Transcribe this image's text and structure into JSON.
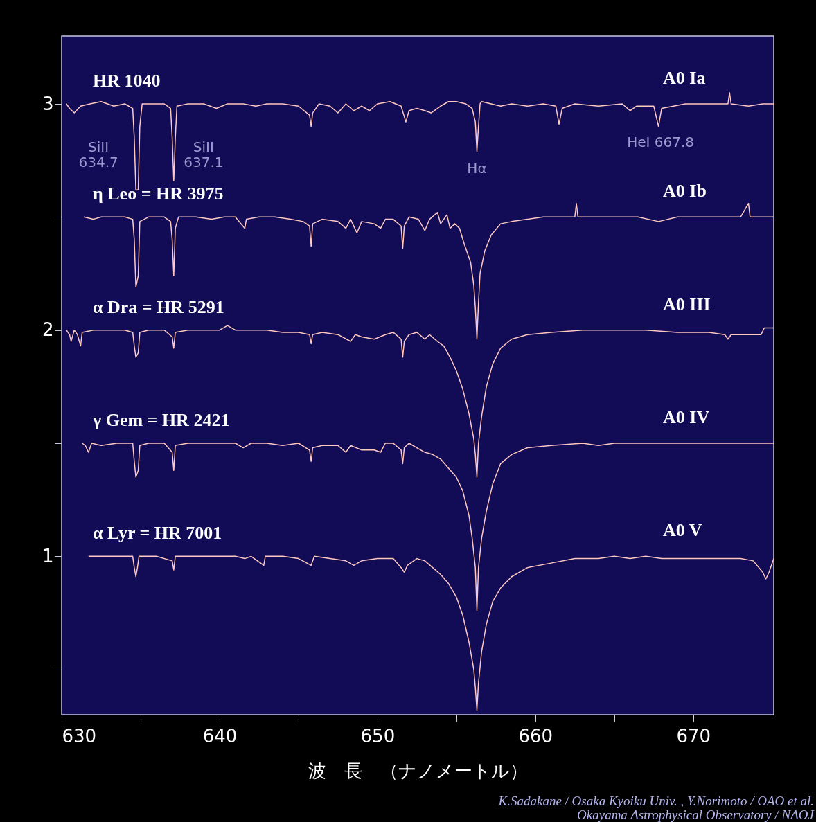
{
  "chart_data": {
    "type": "line",
    "xlabel": "波　長　（ナノメートル）",
    "xlim": [
      630,
      675.1
    ],
    "ylim": [
      0.3,
      3.3
    ],
    "xticks": [
      630,
      {
        "value": 635,
        "label": null
      },
      640,
      {
        "value": 645,
        "label": null
      },
      650,
      {
        "value": 655,
        "label": null
      },
      660,
      {
        "value": 665,
        "label": null
      },
      670
    ],
    "yticks": [
      {
        "value": 0.5,
        "label": null
      },
      {
        "value": 1,
        "label": "1"
      },
      {
        "value": 1.5,
        "label": null
      },
      {
        "value": 2,
        "label": "2"
      },
      {
        "value": 2.5,
        "label": null
      },
      {
        "value": 3,
        "label": "3"
      }
    ],
    "grid": false,
    "line_style": "solid",
    "marker": "none",
    "legend": false,
    "series": [
      {
        "name": "HR 1040",
        "color": "#ffc8c0",
        "x": [
          630.3,
          630.5,
          630.8,
          631.2,
          631.8,
          632.5,
          633.3,
          634.0,
          634.5,
          634.6,
          634.7,
          634.85,
          634.95,
          635.1,
          635.8,
          636.5,
          636.9,
          637.0,
          637.1,
          637.2,
          637.3,
          638.0,
          639.0,
          639.8,
          640.5,
          641.5,
          642.3,
          643.0,
          644.0,
          645.0,
          645.7,
          645.8,
          645.9,
          646.3,
          647.0,
          647.5,
          648.0,
          648.5,
          649.0,
          649.5,
          650.0,
          650.8,
          651.5,
          651.8,
          652.0,
          652.5,
          653.0,
          653.4,
          654.0,
          654.5,
          655.0,
          655.6,
          656.0,
          656.2,
          656.3,
          656.4,
          656.5,
          656.6,
          657.2,
          657.8,
          658.5,
          659.5,
          660.5,
          661.3,
          661.5,
          661.7,
          662.5,
          664.0,
          665.5,
          666.0,
          666.4,
          667.5,
          667.8,
          668.0,
          669.5,
          671.0,
          672.2,
          672.3,
          672.4,
          673.5,
          674.4,
          675.1
        ],
        "values": [
          3.0,
          2.98,
          2.96,
          2.99,
          3.0,
          3.01,
          2.99,
          3.0,
          2.98,
          2.85,
          2.62,
          2.62,
          2.9,
          3.0,
          3.0,
          3.0,
          2.98,
          2.85,
          2.66,
          2.85,
          2.99,
          3.0,
          3.0,
          2.98,
          3.0,
          3.0,
          2.99,
          3.0,
          3.0,
          2.99,
          2.95,
          2.9,
          2.96,
          3.0,
          2.99,
          2.96,
          3.0,
          2.97,
          2.99,
          2.97,
          3.0,
          3.01,
          2.99,
          2.92,
          2.97,
          2.98,
          2.97,
          2.96,
          2.99,
          3.01,
          3.01,
          3.0,
          2.98,
          2.92,
          2.79,
          2.9,
          3.0,
          3.01,
          3.0,
          2.99,
          3.0,
          2.99,
          3.0,
          2.99,
          2.91,
          2.98,
          3.0,
          2.99,
          3.0,
          2.97,
          2.99,
          2.99,
          2.9,
          2.98,
          3.0,
          3.0,
          3.0,
          3.05,
          3.0,
          2.99,
          3.0,
          3.0
        ]
      },
      {
        "name": "η Leo = HR 3975",
        "color": "#ffc8c0",
        "x": [
          631.4,
          632.0,
          632.5,
          633.3,
          634.0,
          634.5,
          634.6,
          634.7,
          634.85,
          634.95,
          635.5,
          636.5,
          636.9,
          637.0,
          637.1,
          637.2,
          637.4,
          638.5,
          639.5,
          640.3,
          641.0,
          641.6,
          641.7,
          642.5,
          643.5,
          644.5,
          645.3,
          645.7,
          645.8,
          645.9,
          646.5,
          647.5,
          648.0,
          648.3,
          648.7,
          649.0,
          649.8,
          650.2,
          650.5,
          651.0,
          651.5,
          651.6,
          651.7,
          652.0,
          652.6,
          653.0,
          653.3,
          653.8,
          654.0,
          654.4,
          654.6,
          654.9,
          655.2,
          655.5,
          655.9,
          656.1,
          656.2,
          656.3,
          656.4,
          656.5,
          656.8,
          657.2,
          657.8,
          658.5,
          659.5,
          660.5,
          661.5,
          662.5,
          662.6,
          662.7,
          664.0,
          665.5,
          666.5,
          667.8,
          669.0,
          671.0,
          673.0,
          673.5,
          673.6,
          675.1
        ],
        "values": [
          2.5,
          2.49,
          2.5,
          2.5,
          2.5,
          2.49,
          2.4,
          2.19,
          2.24,
          2.48,
          2.5,
          2.5,
          2.48,
          2.4,
          2.24,
          2.45,
          2.5,
          2.5,
          2.49,
          2.5,
          2.5,
          2.45,
          2.49,
          2.5,
          2.5,
          2.49,
          2.48,
          2.46,
          2.37,
          2.47,
          2.49,
          2.48,
          2.45,
          2.49,
          2.43,
          2.48,
          2.47,
          2.45,
          2.49,
          2.49,
          2.46,
          2.36,
          2.46,
          2.5,
          2.49,
          2.44,
          2.49,
          2.52,
          2.47,
          2.51,
          2.45,
          2.47,
          2.45,
          2.38,
          2.3,
          2.2,
          2.1,
          1.96,
          2.12,
          2.25,
          2.35,
          2.42,
          2.47,
          2.48,
          2.49,
          2.5,
          2.5,
          2.5,
          2.56,
          2.5,
          2.5,
          2.5,
          2.5,
          2.48,
          2.5,
          2.5,
          2.5,
          2.56,
          2.5,
          2.5
        ]
      },
      {
        "name": "α Dra = HR 5291",
        "color": "#ffc8c0",
        "x": [
          630.3,
          630.5,
          630.6,
          630.8,
          631.0,
          631.2,
          631.3,
          632.0,
          633.0,
          634.0,
          634.5,
          634.6,
          634.7,
          634.85,
          634.95,
          635.5,
          636.5,
          637.0,
          637.1,
          637.2,
          638.0,
          639.0,
          640.0,
          640.5,
          641.0,
          642.0,
          643.0,
          644.0,
          645.0,
          645.7,
          645.8,
          645.9,
          646.5,
          647.5,
          648.3,
          648.6,
          649.0,
          649.8,
          650.5,
          651.0,
          651.5,
          651.6,
          651.7,
          652.0,
          652.5,
          653.0,
          653.3,
          653.8,
          654.2,
          654.6,
          655.0,
          655.4,
          655.8,
          656.1,
          656.2,
          656.3,
          656.4,
          656.6,
          656.9,
          657.3,
          657.8,
          658.5,
          659.5,
          661.0,
          663.0,
          665.0,
          667.0,
          669.0,
          671.0,
          672.0,
          672.2,
          672.4,
          674.3,
          674.5,
          675.1
        ],
        "values": [
          2.0,
          1.98,
          1.95,
          2.0,
          1.98,
          1.93,
          1.99,
          2.0,
          2.0,
          2.0,
          1.99,
          1.93,
          1.88,
          1.9,
          1.99,
          2.0,
          2.0,
          1.97,
          1.92,
          1.99,
          2.0,
          2.0,
          2.0,
          2.02,
          2.0,
          2.0,
          2.0,
          1.99,
          1.99,
          1.98,
          1.94,
          1.98,
          1.99,
          1.98,
          1.95,
          1.98,
          1.97,
          1.96,
          1.98,
          1.99,
          1.96,
          1.88,
          1.95,
          1.98,
          1.99,
          1.96,
          1.98,
          1.95,
          1.93,
          1.88,
          1.82,
          1.74,
          1.63,
          1.52,
          1.45,
          1.35,
          1.5,
          1.62,
          1.75,
          1.85,
          1.92,
          1.96,
          1.98,
          1.99,
          2.0,
          2.0,
          2.0,
          1.99,
          1.99,
          1.98,
          1.96,
          1.98,
          1.98,
          2.01,
          2.01
        ]
      },
      {
        "name": "γ Gem = HR 2421",
        "color": "#ffc8c0",
        "x": [
          631.3,
          631.5,
          631.7,
          631.9,
          632.5,
          633.5,
          634.5,
          634.6,
          634.7,
          634.85,
          634.95,
          635.5,
          636.5,
          637.0,
          637.1,
          637.2,
          638.0,
          639.0,
          640.0,
          641.0,
          641.5,
          642.0,
          643.0,
          644.0,
          645.0,
          645.7,
          645.8,
          645.9,
          646.5,
          647.5,
          648.0,
          648.3,
          649.0,
          649.8,
          650.2,
          650.5,
          651.0,
          651.5,
          651.6,
          651.7,
          652.0,
          652.5,
          653.0,
          653.5,
          654.0,
          654.5,
          655.0,
          655.4,
          655.8,
          656.0,
          656.2,
          656.3,
          656.4,
          656.6,
          656.9,
          657.3,
          657.8,
          658.5,
          659.5,
          661.0,
          663.0,
          664.0,
          665.0,
          667.0,
          669.0,
          671.0,
          673.0,
          675.1
        ],
        "values": [
          1.5,
          1.49,
          1.46,
          1.5,
          1.49,
          1.5,
          1.5,
          1.42,
          1.35,
          1.38,
          1.49,
          1.5,
          1.5,
          1.46,
          1.38,
          1.49,
          1.5,
          1.5,
          1.5,
          1.5,
          1.48,
          1.5,
          1.5,
          1.49,
          1.5,
          1.47,
          1.42,
          1.48,
          1.49,
          1.49,
          1.46,
          1.49,
          1.47,
          1.47,
          1.46,
          1.5,
          1.5,
          1.47,
          1.41,
          1.48,
          1.5,
          1.48,
          1.46,
          1.45,
          1.43,
          1.39,
          1.35,
          1.29,
          1.18,
          1.08,
          0.95,
          0.76,
          0.95,
          1.08,
          1.2,
          1.32,
          1.41,
          1.45,
          1.48,
          1.49,
          1.5,
          1.49,
          1.5,
          1.5,
          1.5,
          1.5,
          1.5,
          1.5
        ]
      },
      {
        "name": "α Lyr = HR 7001",
        "color": "#ffc8c0",
        "x": [
          631.7,
          632.5,
          633.5,
          634.5,
          634.6,
          634.7,
          634.8,
          634.9,
          636.0,
          637.0,
          637.1,
          637.2,
          638.0,
          639.0,
          640.0,
          641.0,
          641.6,
          642.0,
          642.8,
          642.9,
          644.0,
          645.0,
          645.8,
          646.0,
          647.0,
          648.0,
          648.5,
          649.0,
          650.0,
          651.0,
          651.5,
          651.7,
          651.9,
          652.5,
          653.0,
          653.5,
          654.0,
          654.5,
          655.0,
          655.4,
          655.8,
          656.1,
          656.2,
          656.3,
          656.4,
          656.6,
          656.9,
          657.3,
          657.8,
          658.5,
          659.5,
          661.0,
          662.5,
          664.0,
          665.0,
          666.0,
          667.0,
          668.0,
          669.0,
          671.0,
          673.0,
          673.8,
          674.4,
          674.6,
          674.8,
          675.1
        ],
        "values": [
          1.0,
          1.0,
          1.0,
          1.0,
          0.95,
          0.91,
          0.95,
          1.0,
          1.0,
          0.98,
          0.94,
          1.0,
          1.0,
          1.0,
          1.0,
          1.0,
          0.99,
          1.0,
          0.96,
          1.0,
          1.0,
          0.99,
          0.96,
          1.0,
          0.99,
          0.98,
          0.96,
          0.98,
          0.99,
          0.99,
          0.95,
          0.93,
          0.96,
          0.99,
          0.98,
          0.95,
          0.92,
          0.88,
          0.82,
          0.74,
          0.62,
          0.5,
          0.42,
          0.32,
          0.44,
          0.58,
          0.7,
          0.8,
          0.86,
          0.91,
          0.95,
          0.97,
          0.99,
          0.99,
          1.0,
          0.99,
          1.0,
          0.99,
          0.99,
          0.99,
          0.99,
          0.98,
          0.93,
          0.9,
          0.93,
          0.99
        ]
      }
    ],
    "annotations": [
      "A0 Ia",
      "A0 Ib",
      "A0 III",
      "A0 IV",
      "A0 V",
      {
        "text": "SiII\n634.7",
        "x": 634.7,
        "y": 2.62
      },
      {
        "text": "SiII\n637.1",
        "x": 637.1,
        "y": 2.66
      },
      {
        "text": "Hα",
        "x": 656.3,
        "y": 2.79
      },
      {
        "text": "HeI 667.8",
        "x": 667.8,
        "y": 2.9
      },
      "K.Sadakane / Osaka Kyoiku Univ. , Y.Norimoto / OAO et al.",
      "Okayama Astrophysical Observatory / NAOJ"
    ]
  }
}
